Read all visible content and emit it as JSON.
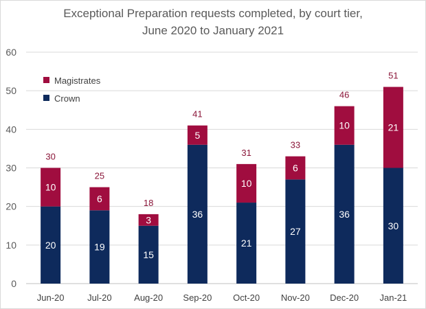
{
  "chart_data": {
    "type": "bar",
    "stacked": true,
    "title": "Exceptional Preparation requests completed, by court tier,",
    "subtitle": "June 2020 to January 2021",
    "xlabel": "",
    "ylabel": "",
    "categories": [
      "Jun-20",
      "Jul-20",
      "Aug-20",
      "Sep-20",
      "Oct-20",
      "Nov-20",
      "Dec-20",
      "Jan-21"
    ],
    "series": [
      {
        "name": "Crown",
        "color": "#0e2a5c",
        "values": [
          20,
          19,
          15,
          36,
          21,
          27,
          36,
          30
        ]
      },
      {
        "name": "Magistrates",
        "color": "#a00d3f",
        "values": [
          10,
          6,
          3,
          5,
          10,
          6,
          10,
          21
        ]
      }
    ],
    "totals": [
      30,
      25,
      18,
      41,
      31,
      33,
      46,
      51
    ],
    "ylim": [
      0,
      60
    ],
    "yticks": [
      0,
      10,
      20,
      30,
      40,
      50,
      60
    ],
    "grid": true,
    "legend_position": "top-left",
    "legend_order": [
      "Magistrates",
      "Crown"
    ]
  }
}
